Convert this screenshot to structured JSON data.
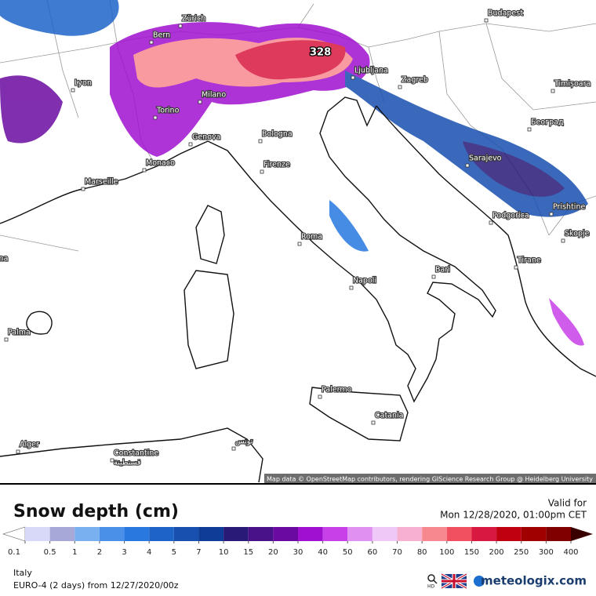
{
  "map": {
    "attribution": "Map data © OpenStreetMap contributors, rendering GIScience Research Group @ Heidelberg University",
    "max_label": "328",
    "cities": [
      "Zürich",
      "Bern",
      "Budapest",
      "Lyon",
      "Milano",
      "Torino",
      "Genova",
      "Monaco",
      "Marseille",
      "Bologna",
      "Firenze",
      "Ljubljana",
      "Zagreb",
      "Timișoara",
      "Београд",
      "Sarajevo",
      "Podgorica",
      "Prishtine",
      "Skopje",
      "Tirane",
      "Roma",
      "Napoli",
      "Bari",
      "Palma",
      "Barcelona",
      "Palermo",
      "Catania",
      "Alger",
      "Constantine",
      "قسنطينة",
      "تونس"
    ]
  },
  "legend": {
    "title": "Snow depth (cm)",
    "valid_label": "Valid for",
    "valid_time": "Mon 12/28/2020, 01:00pm CET",
    "scale": {
      "ticks": [
        0.1,
        0.5,
        1,
        2,
        3,
        4,
        5,
        7,
        10,
        15,
        20,
        30,
        40,
        50,
        60,
        70,
        80,
        100,
        150,
        200,
        250,
        300,
        400
      ],
      "colors": [
        "#d8d8f8",
        "#a8a8d8",
        "#78b0f0",
        "#4a90e8",
        "#2878e0",
        "#1e64c8",
        "#1850b0",
        "#0f3c96",
        "#2a1a78",
        "#4a1288",
        "#6a0aa0",
        "#a010d0",
        "#c840e8",
        "#e090f0",
        "#f0c8f8",
        "#f8b0d0",
        "#f88890",
        "#f05060",
        "#d81840",
        "#c00010",
        "#a00000",
        "#800000"
      ],
      "under_color": "#ffffff",
      "over_color": "#3a0000"
    }
  },
  "footer": {
    "region": "Italy",
    "model": "EURO-4 (2 days)  from  12/27/2020/00z",
    "hd": "HD",
    "brand": "meteologix.com"
  }
}
